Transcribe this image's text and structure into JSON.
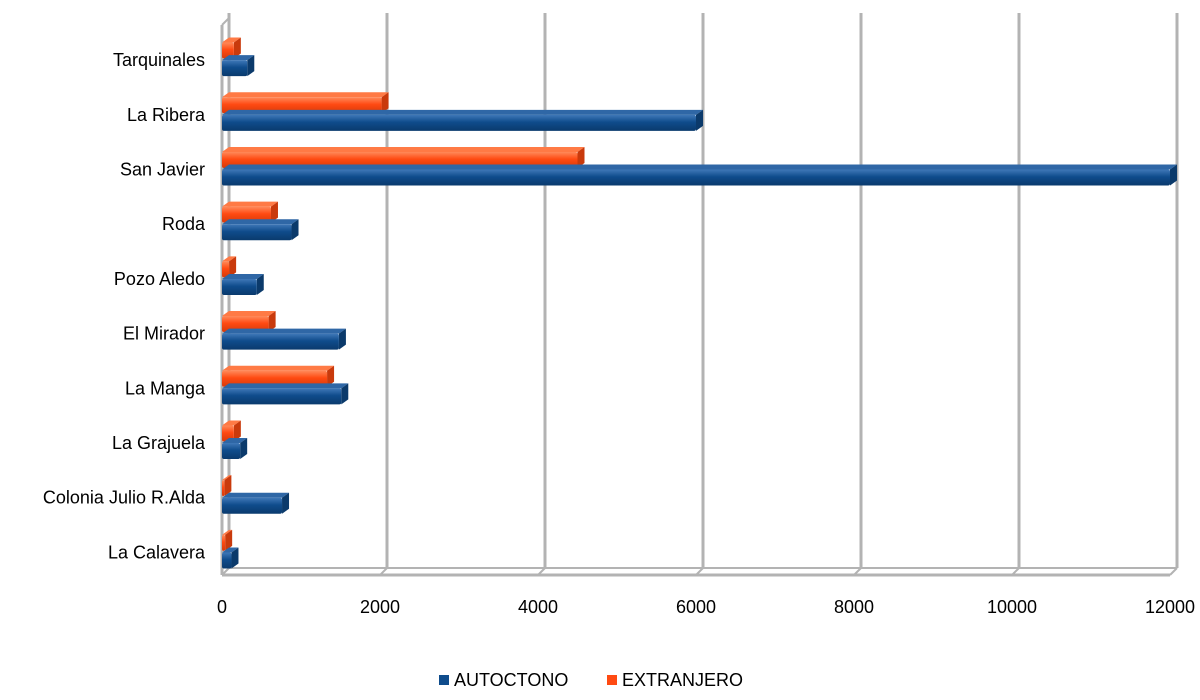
{
  "chart_data": {
    "type": "bar",
    "orientation": "horizontal",
    "title": "",
    "xlabel": "",
    "ylabel": "",
    "xlim": [
      0,
      12000
    ],
    "x_ticks": [
      0,
      2000,
      4000,
      6000,
      8000,
      10000,
      12000
    ],
    "grid": true,
    "legend_position": "bottom",
    "categories": [
      "Tarquinales",
      "La Ribera",
      "San Javier",
      "Roda",
      "Pozo Aledo",
      "El Mirador",
      "La Manga",
      "La Grajuela",
      "Colonia Julio R.Alda",
      "La Calavera"
    ],
    "series": [
      {
        "name": "AUTOCTONO",
        "color": "#0f4c8c",
        "values": [
          320,
          6000,
          12000,
          880,
          440,
          1480,
          1510,
          230,
          760,
          120
        ]
      },
      {
        "name": "EXTRANJERO",
        "color": "#ff4a12",
        "values": [
          150,
          2020,
          4500,
          620,
          90,
          590,
          1330,
          150,
          30,
          40
        ]
      }
    ]
  }
}
